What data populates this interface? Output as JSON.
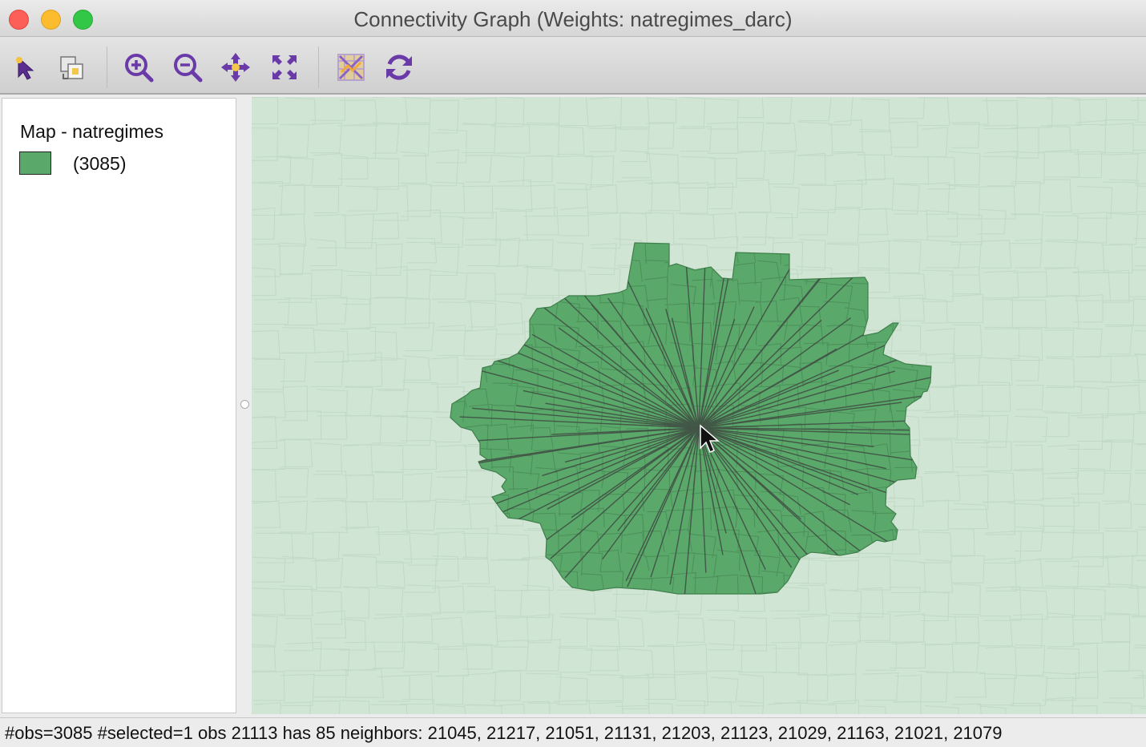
{
  "window": {
    "title": "Connectivity Graph (Weights: natregimes_darc)"
  },
  "toolbar": {
    "tools": [
      {
        "name": "select-tool-icon"
      },
      {
        "name": "selection-mode-icon"
      },
      {
        "name": "zoom-in-icon"
      },
      {
        "name": "zoom-out-icon"
      },
      {
        "name": "pan-icon"
      },
      {
        "name": "fit-to-window-icon"
      },
      {
        "name": "map-layer-icon"
      },
      {
        "name": "refresh-icon"
      }
    ]
  },
  "legend": {
    "title": "Map - natregimes",
    "items": [
      {
        "label": "(3085)",
        "color": "#5aa86a"
      }
    ]
  },
  "map": {
    "background_color": "#d0e5d3",
    "selection_color": "#5aa86a",
    "edge_color": "#3f4a42"
  },
  "status": {
    "text": "#obs=3085 #selected=1  obs 21113 has 85 neighbors: 21045, 21217, 21051, 21131, 21203, 21123, 21029, 21163, 21021, 21079"
  }
}
